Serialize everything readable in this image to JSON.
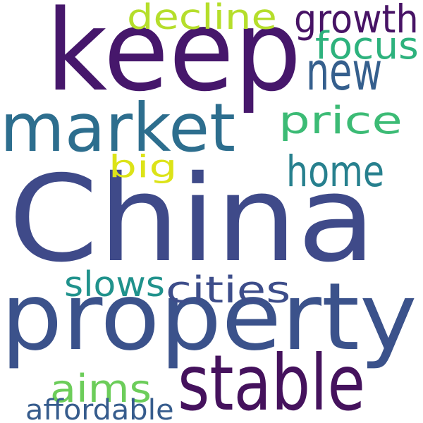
{
  "words": [
    {
      "text": "China",
      "color": "#3f4a89"
    },
    {
      "text": "property",
      "color": "#3b528b"
    },
    {
      "text": "keep",
      "color": "#46176b"
    },
    {
      "text": "market",
      "color": "#2d6e8e"
    },
    {
      "text": "stable",
      "color": "#45125d"
    },
    {
      "text": "price",
      "color": "#3cbb75"
    },
    {
      "text": "home",
      "color": "#27808e"
    },
    {
      "text": "growth",
      "color": "#471365"
    },
    {
      "text": "focus",
      "color": "#2db27d"
    },
    {
      "text": "decline",
      "color": "#b5de2b"
    },
    {
      "text": "new",
      "color": "#355f8d"
    },
    {
      "text": "big",
      "color": "#dce318"
    },
    {
      "text": "slows",
      "color": "#20928c"
    },
    {
      "text": "cities",
      "color": "#3d4d8a"
    },
    {
      "text": "aims",
      "color": "#6ccd5a"
    },
    {
      "text": "affordable",
      "color": "#365c8d"
    }
  ]
}
